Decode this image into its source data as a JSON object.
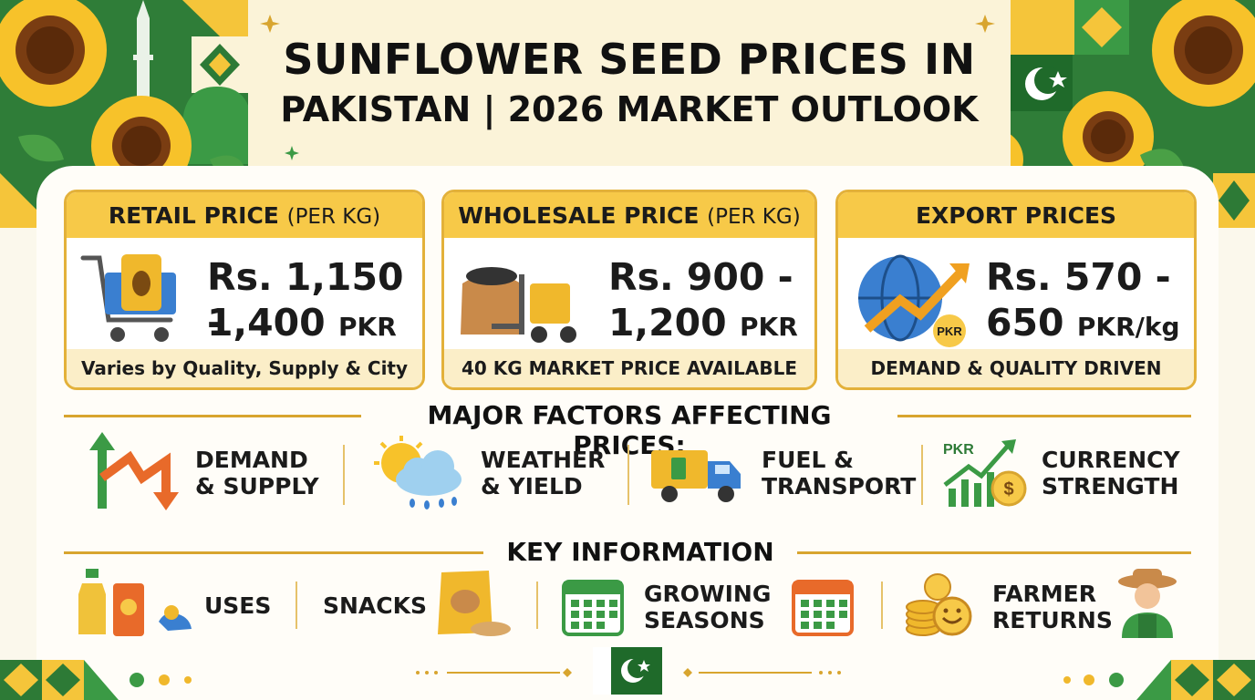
{
  "header": {
    "title_line1": "SUNFLOWER SEED PRICES IN",
    "title_line2": "PAKISTAN | 2026 MARKET OUTLOOK"
  },
  "cards": [
    {
      "heading": "RETAIL PRICE",
      "heading_suffix": "(PER KG)",
      "price_line1": "Rs. 1,150 -",
      "price_line2": "1,400",
      "unit": "PKR",
      "footer": "Varies by Quality, Supply & City",
      "icon": "shopping-cart-icon"
    },
    {
      "heading": "WHOLESALE PRICE",
      "heading_suffix": "(PER KG)",
      "price_line1": "Rs. 900 -",
      "price_line2": "1,200",
      "unit": "PKR",
      "footer": "40 KG MARKET PRICE AVAILABLE",
      "icon": "forklift-icon"
    },
    {
      "heading": "EXPORT PRICES",
      "heading_suffix": "",
      "price_line1": "Rs. 570 -",
      "price_line2": "650",
      "unit": "PKR/kg",
      "footer": "DEMAND & QUALITY DRIVEN",
      "icon": "globe-growth-icon"
    }
  ],
  "factors": {
    "title": "MAJOR FACTORS AFFECTING PRICES:",
    "items": [
      {
        "line1": "DEMAND",
        "line2": "& SUPPLY",
        "icon": "up-down-arrows-icon"
      },
      {
        "line1": "WEATHER",
        "line2": "& YIELD",
        "icon": "weather-icon"
      },
      {
        "line1": "FUEL &",
        "line2": "TRANSPORT",
        "icon": "fuel-truck-icon"
      },
      {
        "line1": "CURRENCY",
        "line2": "STRENGTH",
        "icon": "currency-chart-icon",
        "icon_text": "PKR"
      }
    ]
  },
  "key_info": {
    "title": "KEY INFORMATION",
    "items": [
      {
        "line1": "USES",
        "line2": "",
        "icon": "oil-bottle-icon"
      },
      {
        "line1": "SNACKS",
        "line2": "",
        "icon": "snack-bag-icon"
      },
      {
        "line1": "GROWING",
        "line2": "SEASONS",
        "icon": "calendar-icon"
      },
      {
        "line1": "FARMER",
        "line2": "RETURNS",
        "icon": "coins-icon"
      }
    ]
  },
  "badges": {
    "pkr": "PKR"
  },
  "colors": {
    "green": "#2d7a36",
    "yellow": "#f7c948",
    "gold": "#e3b13a",
    "cream": "#fbf3d8"
  }
}
